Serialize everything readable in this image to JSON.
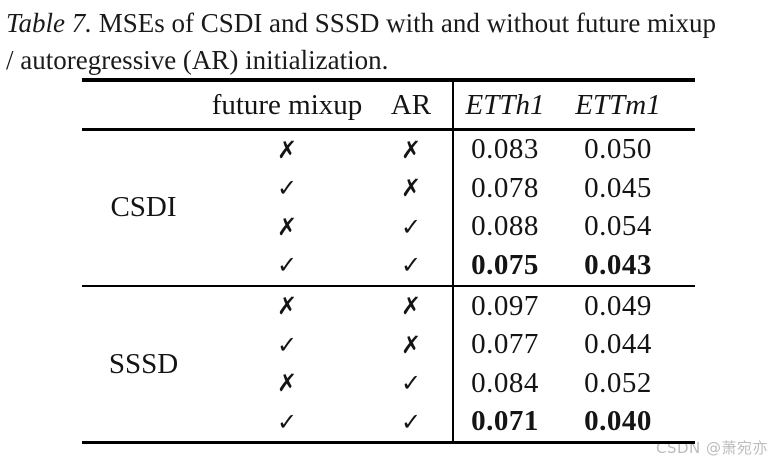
{
  "caption": {
    "label": "Table 7.",
    "text_line1": " MSEs of CSDI and SSSD with and without future mixup",
    "text_line2": "/ autoregressive (AR) initialization."
  },
  "table": {
    "columns": {
      "future_mixup": "future mixup",
      "ar": "AR",
      "etth1": "ETTh1",
      "ettm1": "ETTm1"
    },
    "marks": {
      "yes": "✓",
      "no": "✗"
    },
    "groups": [
      {
        "model": "CSDI",
        "rows": [
          {
            "future_mixup": "✗",
            "ar": "✗",
            "etth1": "0.083",
            "ettm1": "0.050",
            "bold": false
          },
          {
            "future_mixup": "✓",
            "ar": "✗",
            "etth1": "0.078",
            "ettm1": "0.045",
            "bold": false
          },
          {
            "future_mixup": "✗",
            "ar": "✓",
            "etth1": "0.088",
            "ettm1": "0.054",
            "bold": false
          },
          {
            "future_mixup": "✓",
            "ar": "✓",
            "etth1": "0.075",
            "ettm1": "0.043",
            "bold": true
          }
        ]
      },
      {
        "model": "SSSD",
        "rows": [
          {
            "future_mixup": "✗",
            "ar": "✗",
            "etth1": "0.097",
            "ettm1": "0.049",
            "bold": false
          },
          {
            "future_mixup": "✓",
            "ar": "✗",
            "etth1": "0.077",
            "ettm1": "0.044",
            "bold": false
          },
          {
            "future_mixup": "✗",
            "ar": "✓",
            "etth1": "0.084",
            "ettm1": "0.052",
            "bold": false
          },
          {
            "future_mixup": "✓",
            "ar": "✓",
            "etth1": "0.071",
            "ettm1": "0.040",
            "bold": true
          }
        ]
      }
    ]
  },
  "watermark": {
    "text": "CSDN @萧宛亦",
    "color": "#bcbcbc"
  }
}
